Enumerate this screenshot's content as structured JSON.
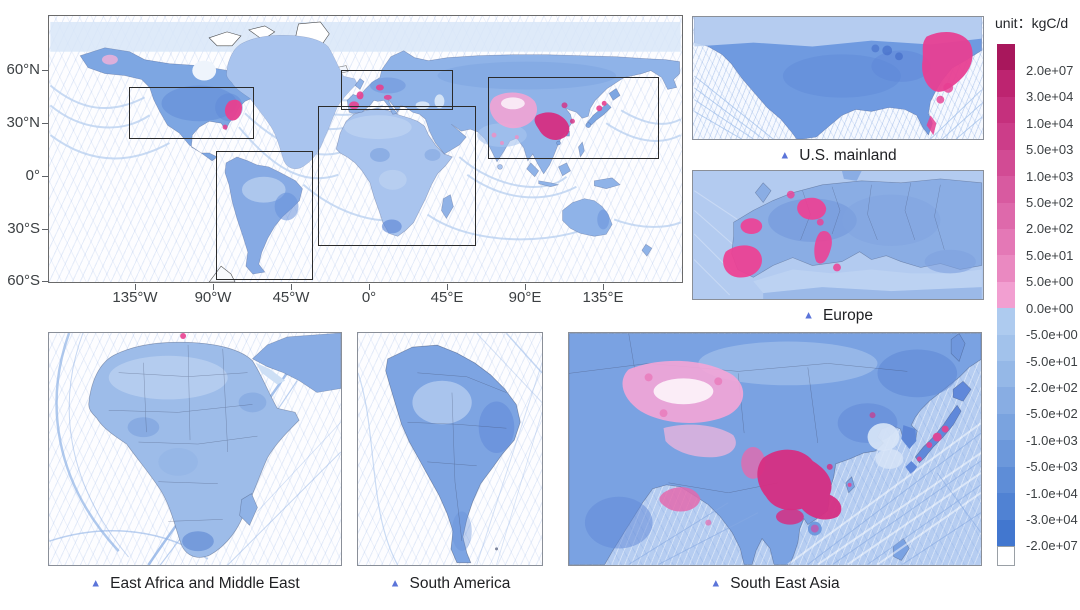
{
  "world_map": {
    "y_axis_ticks": [
      "60°N",
      "30°N",
      "0°",
      "30°S",
      "60°S"
    ],
    "x_axis_ticks": [
      "135°W",
      "90°W",
      "45°W",
      "0°",
      "45°E",
      "90°E",
      "135°E"
    ]
  },
  "insets": [
    {
      "label": "U.S. mainland"
    },
    {
      "label": "Europe"
    },
    {
      "label": "East Africa and Middle East"
    },
    {
      "label": "South America"
    },
    {
      "label": "South East Asia"
    }
  ],
  "marker": {
    "glyph": "▲",
    "color": "#5b74d9"
  },
  "legend": {
    "unit_label": "unit：kgC/d",
    "tick_labels": [
      "2.0e+07",
      "3.0e+04",
      "1.0e+04",
      "5.0e+03",
      "1.0e+03",
      "5.0e+02",
      "2.0e+02",
      "5.0e+01",
      "5.0e+00",
      "0.0e+00",
      "-5.0e+00",
      "-5.0e+01",
      "-2.0e+02",
      "-5.0e+02",
      "-1.0e+03",
      "-5.0e+03",
      "-1.0e+04",
      "-3.0e+04",
      "-2.0e+07"
    ],
    "segment_colors": [
      "#a8175c",
      "#bd2470",
      "#c5307d",
      "#cc3d89",
      "#d24b94",
      "#d85aa0",
      "#de69ab",
      "#e478b6",
      "#ea89c1",
      "#f29fd1",
      "#aecbef",
      "#a2c2eb",
      "#95b8e7",
      "#88ade3",
      "#7aa3df",
      "#6c98db",
      "#5e8dd7",
      "#5082d3",
      "#4277cf"
    ],
    "below_min_color": "#ffffff"
  },
  "map_colors": {
    "carbon_source_pink": "#e8408f",
    "carbon_source_dark": "#d62e82",
    "carbon_source_light": "#f4a5d7",
    "carbon_sink_blue": "#6f9ae0"
  }
}
